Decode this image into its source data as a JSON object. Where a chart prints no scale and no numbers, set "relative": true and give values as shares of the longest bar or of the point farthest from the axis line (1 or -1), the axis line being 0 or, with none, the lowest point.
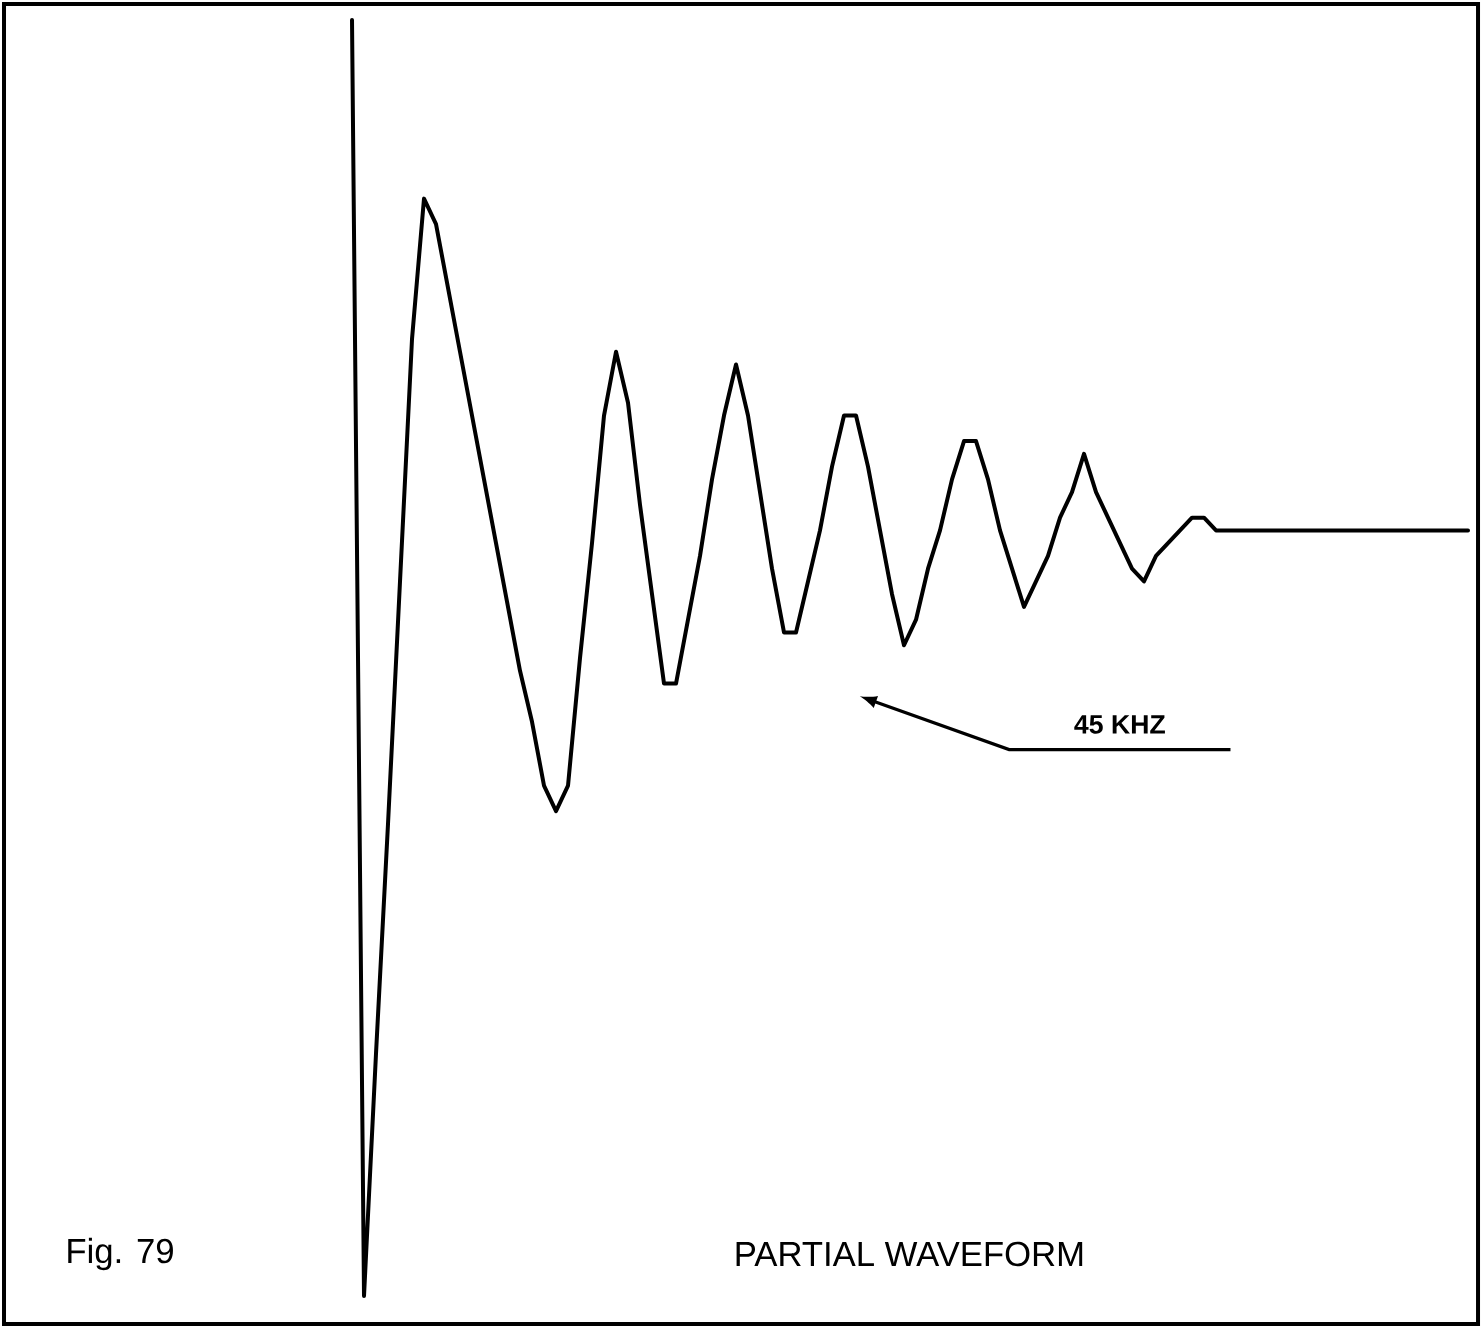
{
  "chart_data": {
    "type": "line",
    "relative": true,
    "title": "PARTIAL WAVEFORM",
    "categories": [
      null,
      null,
      null,
      null,
      null,
      null,
      null,
      null,
      null,
      null,
      null,
      null,
      null,
      null,
      null,
      null,
      null,
      null,
      null,
      null,
      null,
      null,
      null,
      null,
      null,
      null,
      null,
      null,
      null,
      null,
      null,
      null,
      null,
      null,
      null,
      null,
      null,
      null,
      null,
      null,
      null,
      null,
      null,
      null,
      null,
      null,
      null,
      null,
      null,
      null,
      null,
      null,
      null,
      null,
      null,
      null,
      null,
      null,
      null,
      null,
      null,
      null,
      null,
      null,
      null,
      null,
      null,
      null,
      null,
      null,
      null,
      null,
      null,
      null,
      null,
      null,
      null,
      null,
      null,
      null,
      null,
      null,
      null,
      null,
      null,
      null,
      null,
      null,
      null,
      null,
      null,
      null,
      null,
      null
    ],
    "values": [
      1.0,
      0.0,
      0.19,
      0.37,
      0.56,
      0.75,
      0.86,
      0.84,
      0.79,
      0.74,
      0.69,
      0.64,
      0.59,
      0.54,
      0.49,
      0.45,
      0.4,
      0.38,
      0.4,
      0.5,
      0.59,
      0.69,
      0.74,
      0.7,
      0.62,
      0.55,
      0.48,
      0.48,
      0.53,
      0.58,
      0.64,
      0.69,
      0.73,
      0.69,
      0.63,
      0.57,
      0.52,
      0.52,
      0.56,
      0.6,
      0.65,
      0.69,
      0.69,
      0.65,
      0.6,
      0.55,
      0.51,
      0.53,
      0.57,
      0.6,
      0.64,
      0.67,
      0.67,
      0.64,
      0.6,
      0.57,
      0.54,
      0.56,
      0.58,
      0.61,
      0.63,
      0.66,
      0.63,
      0.61,
      0.59,
      0.57,
      0.56,
      0.58,
      0.59,
      0.6,
      0.61,
      0.61,
      0.6,
      0.6,
      0.6,
      0.6,
      0.6,
      0.6,
      0.6,
      0.6,
      0.6,
      0.6,
      0.6,
      0.6,
      0.6,
      0.6,
      0.6,
      0.6,
      0.6,
      0.6,
      0.6,
      0.6,
      0.6,
      0.6
    ],
    "color": "#000000",
    "line_style": "solid",
    "annotations": [
      "Fig. 79",
      "45 KHZ"
    ]
  }
}
